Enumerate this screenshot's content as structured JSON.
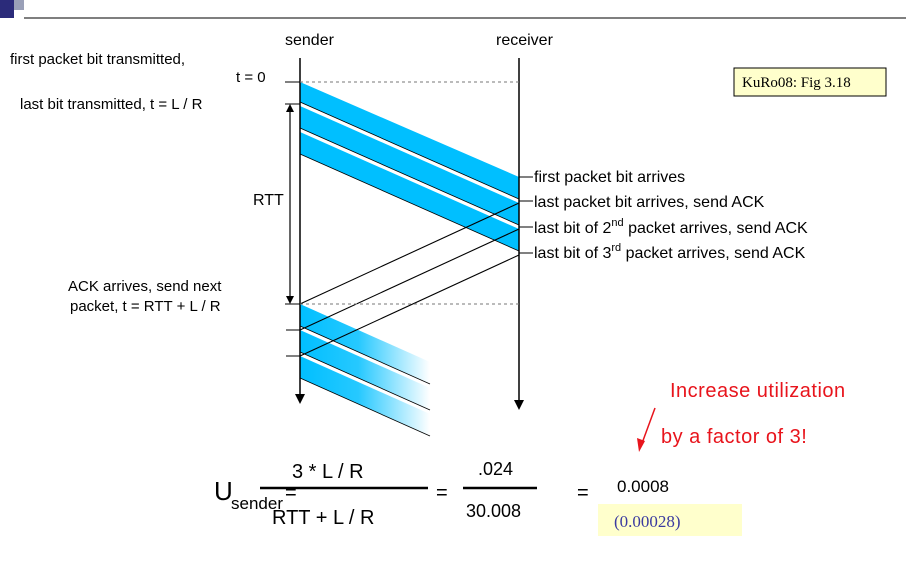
{
  "columns": {
    "sender": "sender",
    "receiver": "receiver"
  },
  "sender_labels": {
    "first_bit_line1": "first packet bit transmitted,",
    "first_bit_line2": "t = 0",
    "last_bit": "last bit transmitted, t = L / R",
    "rtt": "RTT",
    "ack_line1": "ACK arrives, send next",
    "ack_line2": "packet, t = RTT + L / R"
  },
  "receiver_labels": {
    "first_arrives": "first packet bit arrives",
    "last_arrives": "last packet bit arrives, send ACK",
    "second_pre": "last bit of 2",
    "second_sup": "nd",
    "second_post": " packet arrives, send ACK",
    "third_pre": "last bit of 3",
    "third_sup": "rd",
    "third_post": " packet arrives, send ACK"
  },
  "reference": "KuRo08: Fig 3.18",
  "annotation": {
    "line1": "Increase utilization",
    "line2": "by a factor of 3!"
  },
  "equation": {
    "lhs_main": "U",
    "lhs_sub": "sender",
    "equals": "=",
    "numerator": "3 * L / R",
    "denominator": "RTT + L / R",
    "frac2_num": ".024",
    "frac2_den": "30.008",
    "result": "0.0008",
    "previous": "(0.00028)"
  },
  "colors": {
    "packet_fill": "#00bfff",
    "annotation_red": "#e8141c",
    "ref_box_fill": "#ffffcc",
    "prev_box_fill": "#ffffcc",
    "prev_text": "#3a3aa0"
  }
}
